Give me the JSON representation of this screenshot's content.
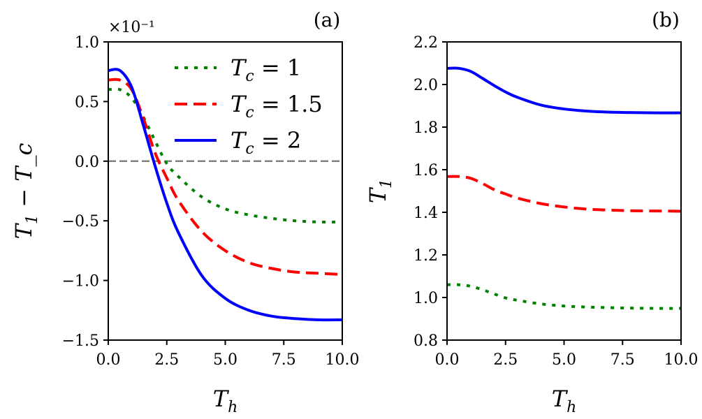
{
  "chart_data": [
    {
      "type": "line",
      "panel_label": "(a)",
      "xlabel": "T_h",
      "ylabel": "T_1 − T_c",
      "y_multiplier": "×10⁻¹",
      "xlim": [
        0,
        10
      ],
      "ylim": [
        -1.5,
        1.0
      ],
      "xticks": [
        "0.0",
        "2.5",
        "5.0",
        "7.5",
        "10.0"
      ],
      "xtick_values": [
        0,
        2.5,
        5,
        7.5,
        10
      ],
      "yticks": [
        "1.0",
        "0.5",
        "0.0",
        "-0.5",
        "-1.0",
        "-1.5"
      ],
      "ytick_values": [
        1.0,
        0.5,
        0.0,
        -0.5,
        -1.0,
        -1.5
      ],
      "reference_line": 0,
      "legend_position": "top-right",
      "x": [
        0,
        0.5,
        1,
        1.5,
        2,
        2.5,
        3,
        4,
        5,
        6,
        7,
        8,
        9,
        10
      ],
      "series": [
        {
          "name": "T_c = 1",
          "legend": "= 1",
          "color": "#008000",
          "style": "dotted",
          "values": [
            0.6,
            0.6,
            0.53,
            0.37,
            0.17,
            -0.02,
            -0.13,
            -0.3,
            -0.4,
            -0.45,
            -0.48,
            -0.5,
            -0.51,
            -0.51
          ]
        },
        {
          "name": "T_c = 1.5",
          "legend": "= 1.5",
          "color": "#ff0000",
          "style": "dashed",
          "values": [
            0.68,
            0.68,
            0.6,
            0.36,
            0.07,
            -0.14,
            -0.33,
            -0.59,
            -0.75,
            -0.85,
            -0.9,
            -0.93,
            -0.94,
            -0.95
          ]
        },
        {
          "name": "T_c = 2",
          "legend": "= 2",
          "color": "#0000ff",
          "style": "solid",
          "values": [
            0.76,
            0.76,
            0.62,
            0.3,
            -0.04,
            -0.35,
            -0.6,
            -0.96,
            -1.15,
            -1.25,
            -1.3,
            -1.32,
            -1.33,
            -1.33
          ]
        }
      ]
    },
    {
      "type": "line",
      "panel_label": "(b)",
      "xlabel": "T_h",
      "ylabel": "T_1",
      "xlim": [
        0,
        10
      ],
      "ylim": [
        0.8,
        2.2
      ],
      "xticks": [
        "0.0",
        "2.5",
        "5.0",
        "7.5",
        "10.0"
      ],
      "xtick_values": [
        0,
        2.5,
        5,
        7.5,
        10
      ],
      "yticks": [
        "2.2",
        "2.0",
        "1.8",
        "1.6",
        "1.4",
        "1.2",
        "1.0",
        "0.8"
      ],
      "ytick_values": [
        2.2,
        2.0,
        1.8,
        1.6,
        1.4,
        1.2,
        1.0,
        0.8
      ],
      "x": [
        0,
        0.5,
        1,
        1.5,
        2,
        2.5,
        3,
        4,
        5,
        6,
        7,
        8,
        9,
        10
      ],
      "series": [
        {
          "name": "T_c = 1",
          "color": "#008000",
          "style": "dotted",
          "values": [
            1.06,
            1.06,
            1.053,
            1.037,
            1.017,
            0.998,
            0.987,
            0.97,
            0.96,
            0.955,
            0.952,
            0.95,
            0.949,
            0.949
          ]
        },
        {
          "name": "T_c = 1.5",
          "color": "#ff0000",
          "style": "dashed",
          "values": [
            1.568,
            1.568,
            1.56,
            1.536,
            1.507,
            1.486,
            1.467,
            1.441,
            1.425,
            1.415,
            1.41,
            1.407,
            1.406,
            1.405
          ]
        },
        {
          "name": "T_c = 2",
          "color": "#0000ff",
          "style": "solid",
          "values": [
            2.076,
            2.076,
            2.062,
            2.03,
            1.996,
            1.965,
            1.94,
            1.904,
            1.885,
            1.875,
            1.87,
            1.868,
            1.867,
            1.867
          ]
        }
      ]
    }
  ]
}
